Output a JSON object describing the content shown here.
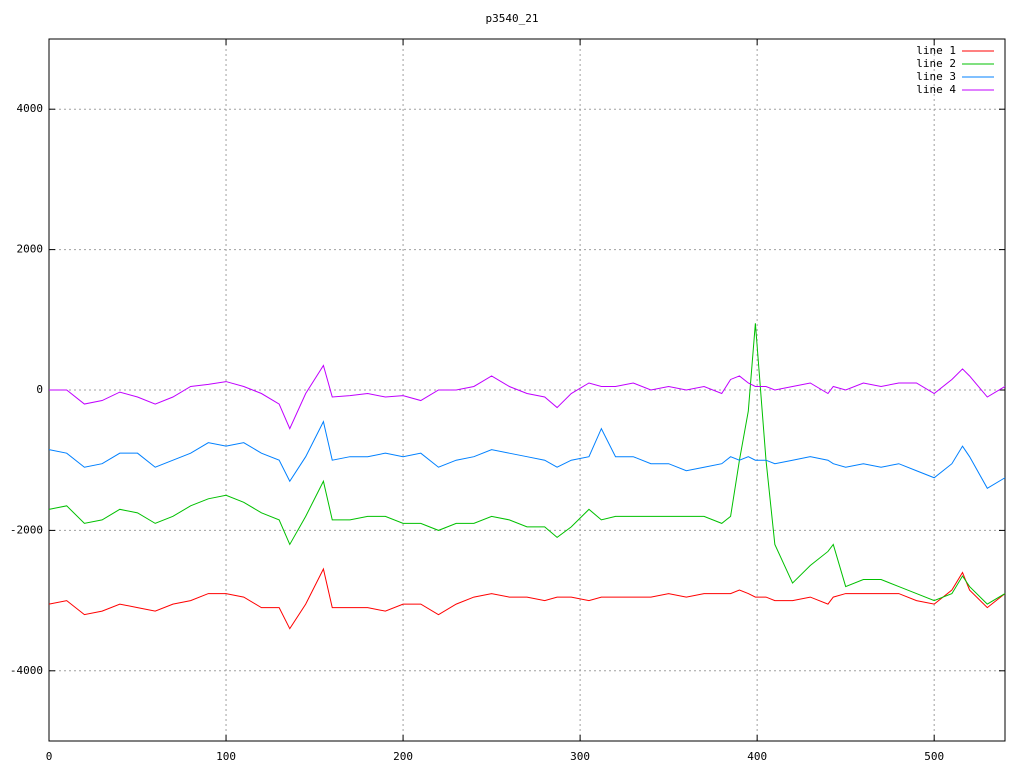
{
  "chart_data": {
    "type": "line",
    "title": "p3540_21",
    "x": [
      0,
      10,
      20,
      30,
      40,
      50,
      60,
      70,
      80,
      90,
      100,
      110,
      120,
      130,
      136,
      145,
      155,
      160,
      170,
      180,
      190,
      200,
      210,
      220,
      230,
      240,
      250,
      260,
      270,
      280,
      287,
      295,
      305,
      312,
      320,
      330,
      340,
      350,
      360,
      370,
      380,
      385,
      390,
      395,
      399,
      405,
      410,
      420,
      430,
      440,
      443,
      450,
      460,
      470,
      480,
      490,
      500,
      510,
      516,
      520,
      530,
      540
    ],
    "series": [
      {
        "name": "line 1",
        "color": "#ff0000",
        "values": [
          -3050,
          -3000,
          -3200,
          -3150,
          -3050,
          -3100,
          -3150,
          -3050,
          -3000,
          -2900,
          -2900,
          -2950,
          -3100,
          -3100,
          -3400,
          -3050,
          -2550,
          -3100,
          -3100,
          -3100,
          -3150,
          -3050,
          -3050,
          -3200,
          -3050,
          -2950,
          -2900,
          -2950,
          -2950,
          -3000,
          -2950,
          -2950,
          -3000,
          -2950,
          -2950,
          -2950,
          -2950,
          -2900,
          -2950,
          -2900,
          -2900,
          -2900,
          -2850,
          -2900,
          -2950,
          -2950,
          -3000,
          -3000,
          -2950,
          -3050,
          -2950,
          -2900,
          -2900,
          -2900,
          -2900,
          -3000,
          -3050,
          -2850,
          -2600,
          -2850,
          -3100,
          -2900
        ]
      },
      {
        "name": "line 2",
        "color": "#00c000",
        "values": [
          -1700,
          -1650,
          -1900,
          -1850,
          -1700,
          -1750,
          -1900,
          -1800,
          -1650,
          -1550,
          -1500,
          -1600,
          -1750,
          -1850,
          -2200,
          -1800,
          -1300,
          -1850,
          -1850,
          -1800,
          -1800,
          -1900,
          -1900,
          -2000,
          -1900,
          -1900,
          -1800,
          -1850,
          -1950,
          -1950,
          -2100,
          -1950,
          -1700,
          -1850,
          -1800,
          -1800,
          -1800,
          -1800,
          -1800,
          -1800,
          -1900,
          -1800,
          -1000,
          -300,
          950,
          -1000,
          -2200,
          -2750,
          -2500,
          -2300,
          -2200,
          -2800,
          -2700,
          -2700,
          -2800,
          -2900,
          -3000,
          -2900,
          -2650,
          -2800,
          -3050,
          -2900
        ]
      },
      {
        "name": "line 3",
        "color": "#0080ff",
        "values": [
          -850,
          -900,
          -1100,
          -1050,
          -900,
          -900,
          -1100,
          -1000,
          -900,
          -750,
          -800,
          -750,
          -900,
          -1000,
          -1300,
          -950,
          -450,
          -1000,
          -950,
          -950,
          -900,
          -950,
          -900,
          -1100,
          -1000,
          -950,
          -850,
          -900,
          -950,
          -1000,
          -1100,
          -1000,
          -950,
          -550,
          -950,
          -950,
          -1050,
          -1050,
          -1150,
          -1100,
          -1050,
          -950,
          -1000,
          -950,
          -1000,
          -1000,
          -1050,
          -1000,
          -950,
          -1000,
          -1050,
          -1100,
          -1050,
          -1100,
          -1050,
          -1150,
          -1250,
          -1050,
          -800,
          -950,
          -1400,
          -1250
        ]
      },
      {
        "name": "line 4",
        "color": "#c000ff",
        "values": [
          0,
          0,
          -200,
          -150,
          -30,
          -100,
          -200,
          -100,
          50,
          80,
          120,
          50,
          -50,
          -200,
          -550,
          -50,
          350,
          -100,
          -80,
          -50,
          -100,
          -80,
          -150,
          0,
          0,
          50,
          200,
          50,
          -50,
          -100,
          -250,
          -50,
          100,
          50,
          50,
          100,
          0,
          50,
          0,
          50,
          -50,
          150,
          200,
          100,
          50,
          50,
          0,
          50,
          100,
          -50,
          50,
          0,
          100,
          50,
          100,
          100,
          -50,
          150,
          300,
          200,
          -100,
          50
        ]
      }
    ],
    "xlim": [
      0,
      540
    ],
    "ylim": [
      -5000,
      5000
    ],
    "xticks": [
      0,
      100,
      200,
      300,
      400,
      500
    ],
    "yticks": [
      -4000,
      -2000,
      0,
      2000,
      4000
    ],
    "grid": true
  }
}
